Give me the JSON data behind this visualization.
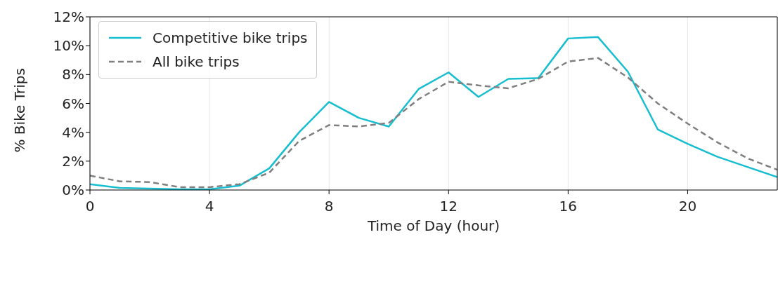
{
  "chart_data": {
    "type": "line",
    "xlabel": "Time of Day (hour)",
    "ylabel": "% Bike Trips",
    "x": [
      0,
      1,
      2,
      3,
      4,
      5,
      6,
      7,
      8,
      9,
      10,
      11,
      12,
      13,
      14,
      15,
      16,
      17,
      18,
      19,
      20,
      21,
      22,
      23
    ],
    "series": [
      {
        "name": "Competitive bike trips",
        "color": "#17becf",
        "line_style": "solid",
        "values": [
          0.4,
          0.15,
          0.1,
          0.05,
          0.05,
          0.3,
          1.5,
          4.0,
          6.1,
          5.0,
          4.4,
          7.0,
          8.15,
          6.45,
          7.7,
          7.75,
          10.5,
          10.6,
          8.2,
          4.2,
          3.2,
          2.3,
          1.6,
          0.9
        ]
      },
      {
        "name": "All bike trips",
        "color": "#7f7f7f",
        "line_style": "dashed",
        "values": [
          1.0,
          0.6,
          0.55,
          0.2,
          0.2,
          0.4,
          1.2,
          3.4,
          4.5,
          4.4,
          4.65,
          6.3,
          7.5,
          7.25,
          7.05,
          7.7,
          8.9,
          9.15,
          7.8,
          6.0,
          4.6,
          3.3,
          2.2,
          1.4
        ]
      }
    ],
    "xlim": [
      0,
      23
    ],
    "xticks": [
      0,
      4,
      8,
      12,
      16,
      20
    ],
    "ylim": [
      0,
      12
    ],
    "yticks": [
      {
        "value": 0,
        "label": "0%"
      },
      {
        "value": 2,
        "label": "2%"
      },
      {
        "value": 4,
        "label": "4%"
      },
      {
        "value": 6,
        "label": "6%"
      },
      {
        "value": 8,
        "label": "8%"
      },
      {
        "value": 10,
        "label": "10%"
      },
      {
        "value": 12,
        "label": "12%"
      }
    ],
    "grid": "x",
    "legend": "top left",
    "marker": "none"
  }
}
